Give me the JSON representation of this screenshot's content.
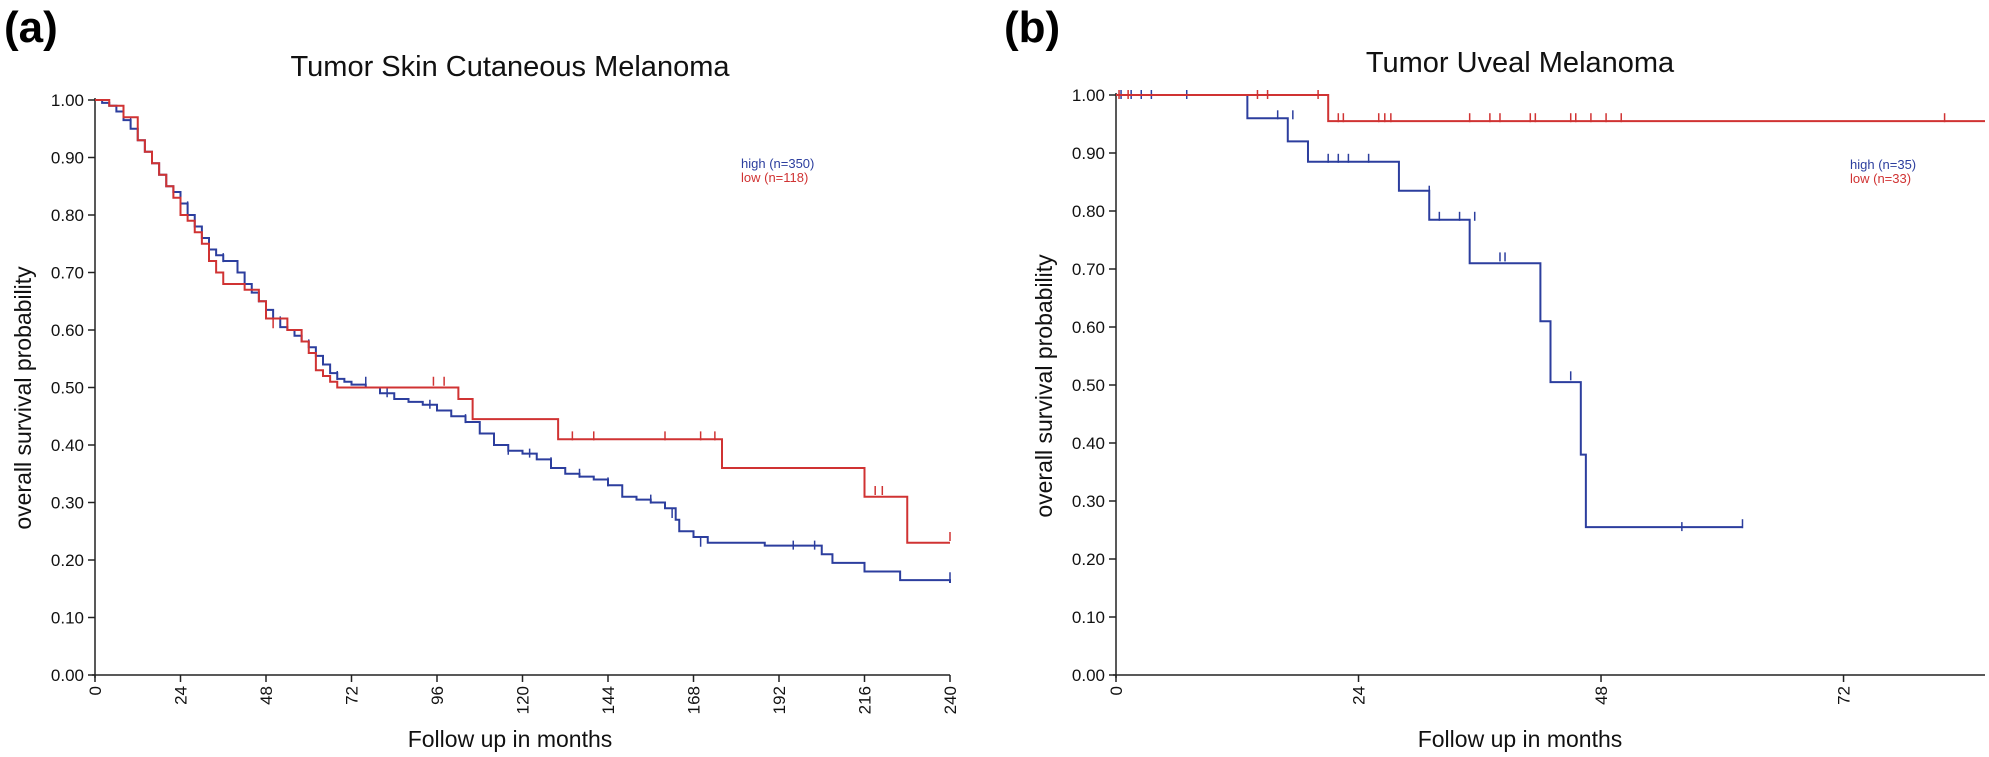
{
  "chart_data": [
    {
      "panel_label": "(a)",
      "type": "line",
      "title": "Tumor Skin Cutaneous Melanoma",
      "xlabel": "Follow up in months",
      "ylabel": "overall survival probability",
      "xlim": [
        0,
        240
      ],
      "ylim": [
        0,
        1.0
      ],
      "x_ticks": [
        0,
        24,
        48,
        72,
        96,
        120,
        144,
        168,
        192,
        216,
        240
      ],
      "y_ticks": [
        "0.00",
        "0.10",
        "0.20",
        "0.30",
        "0.40",
        "0.50",
        "0.60",
        "0.70",
        "0.80",
        "0.90",
        "1.00"
      ],
      "legend": [
        {
          "label": "high (n=350)",
          "color": "#2c3e9e"
        },
        {
          "label": "low (n=118)",
          "color": "#d03333"
        }
      ],
      "series": [
        {
          "name": "high (n=350)",
          "color": "#2c3e9e",
          "steps": [
            [
              0,
              1.0
            ],
            [
              2,
              0.995
            ],
            [
              4,
              0.99
            ],
            [
              6,
              0.98
            ],
            [
              8,
              0.965
            ],
            [
              10,
              0.95
            ],
            [
              12,
              0.93
            ],
            [
              14,
              0.91
            ],
            [
              16,
              0.89
            ],
            [
              18,
              0.87
            ],
            [
              20,
              0.85
            ],
            [
              22,
              0.84
            ],
            [
              24,
              0.82
            ],
            [
              26,
              0.8
            ],
            [
              28,
              0.78
            ],
            [
              30,
              0.76
            ],
            [
              32,
              0.74
            ],
            [
              34,
              0.73
            ],
            [
              36,
              0.72
            ],
            [
              40,
              0.7
            ],
            [
              42,
              0.68
            ],
            [
              44,
              0.665
            ],
            [
              46,
              0.65
            ],
            [
              48,
              0.635
            ],
            [
              50,
              0.62
            ],
            [
              52,
              0.605
            ],
            [
              54,
              0.6
            ],
            [
              56,
              0.59
            ],
            [
              58,
              0.58
            ],
            [
              60,
              0.57
            ],
            [
              62,
              0.555
            ],
            [
              64,
              0.54
            ],
            [
              66,
              0.525
            ],
            [
              68,
              0.515
            ],
            [
              70,
              0.51
            ],
            [
              72,
              0.505
            ],
            [
              76,
              0.5
            ],
            [
              80,
              0.49
            ],
            [
              84,
              0.48
            ],
            [
              88,
              0.475
            ],
            [
              92,
              0.47
            ],
            [
              96,
              0.46
            ],
            [
              100,
              0.45
            ],
            [
              104,
              0.44
            ],
            [
              108,
              0.42
            ],
            [
              112,
              0.4
            ],
            [
              116,
              0.39
            ],
            [
              120,
              0.385
            ],
            [
              124,
              0.375
            ],
            [
              128,
              0.36
            ],
            [
              132,
              0.35
            ],
            [
              136,
              0.345
            ],
            [
              140,
              0.34
            ],
            [
              144,
              0.33
            ],
            [
              148,
              0.31
            ],
            [
              152,
              0.305
            ],
            [
              156,
              0.3
            ],
            [
              160,
              0.29
            ],
            [
              163,
              0.27
            ],
            [
              164,
              0.25
            ],
            [
              168,
              0.24
            ],
            [
              172,
              0.23
            ],
            [
              188,
              0.225
            ],
            [
              204,
              0.21
            ],
            [
              207,
              0.195
            ],
            [
              216,
              0.18
            ],
            [
              226,
              0.165
            ],
            [
              240,
              0.16
            ]
          ],
          "censors": [
            [
              10,
              0.96
            ],
            [
              20,
              0.86
            ],
            [
              26,
              0.815
            ],
            [
              36,
              0.725
            ],
            [
              40,
              0.71
            ],
            [
              46,
              0.655
            ],
            [
              52,
              0.615
            ],
            [
              60,
              0.575
            ],
            [
              68,
              0.52
            ],
            [
              76,
              0.51
            ],
            [
              82,
              0.49
            ],
            [
              94,
              0.47
            ],
            [
              104,
              0.445
            ],
            [
              116,
              0.39
            ],
            [
              122,
              0.385
            ],
            [
              128,
              0.37
            ],
            [
              136,
              0.35
            ],
            [
              144,
              0.335
            ],
            [
              156,
              0.305
            ],
            [
              162,
              0.28
            ],
            [
              170,
              0.23
            ],
            [
              196,
              0.225
            ],
            [
              202,
              0.225
            ],
            [
              240,
              0.17
            ]
          ]
        },
        {
          "name": "low (n=118)",
          "color": "#d03333",
          "steps": [
            [
              0,
              1.0
            ],
            [
              4,
              0.99
            ],
            [
              8,
              0.97
            ],
            [
              12,
              0.93
            ],
            [
              14,
              0.91
            ],
            [
              16,
              0.89
            ],
            [
              18,
              0.87
            ],
            [
              20,
              0.85
            ],
            [
              22,
              0.83
            ],
            [
              24,
              0.8
            ],
            [
              26,
              0.79
            ],
            [
              28,
              0.77
            ],
            [
              30,
              0.75
            ],
            [
              32,
              0.72
            ],
            [
              34,
              0.7
            ],
            [
              36,
              0.68
            ],
            [
              42,
              0.67
            ],
            [
              46,
              0.65
            ],
            [
              48,
              0.62
            ],
            [
              54,
              0.6
            ],
            [
              58,
              0.58
            ],
            [
              60,
              0.56
            ],
            [
              62,
              0.53
            ],
            [
              64,
              0.52
            ],
            [
              66,
              0.51
            ],
            [
              68,
              0.5
            ],
            [
              102,
              0.48
            ],
            [
              106,
              0.445
            ],
            [
              130,
              0.41
            ],
            [
              176,
              0.36
            ],
            [
              216,
              0.31
            ],
            [
              228,
              0.23
            ],
            [
              240,
              0.23
            ]
          ],
          "censors": [
            [
              8,
              0.98
            ],
            [
              22,
              0.84
            ],
            [
              50,
              0.61
            ],
            [
              95,
              0.51
            ],
            [
              98,
              0.51
            ],
            [
              134,
              0.415
            ],
            [
              140,
              0.415
            ],
            [
              160,
              0.415
            ],
            [
              170,
              0.415
            ],
            [
              174,
              0.415
            ],
            [
              219,
              0.32
            ],
            [
              221,
              0.32
            ],
            [
              240,
              0.24
            ]
          ]
        }
      ]
    },
    {
      "panel_label": "(b)",
      "type": "line",
      "title": "Tumor Uveal Melanoma",
      "xlabel": "Follow up in months",
      "ylabel": "overall survival probability",
      "xlim": [
        0,
        86
      ],
      "ylim": [
        0,
        1.0
      ],
      "x_ticks": [
        0,
        24,
        48,
        72
      ],
      "y_ticks": [
        "0.00",
        "0.10",
        "0.20",
        "0.30",
        "0.40",
        "0.50",
        "0.60",
        "0.70",
        "0.80",
        "0.90",
        "1.00"
      ],
      "legend": [
        {
          "label": "high (n=35)",
          "color": "#2c3e9e"
        },
        {
          "label": "low (n=33)",
          "color": "#d03333"
        }
      ],
      "series": [
        {
          "name": "high (n=35)",
          "color": "#2c3e9e",
          "steps": [
            [
              0,
              1.0
            ],
            [
              13,
              0.96
            ],
            [
              17,
              0.92
            ],
            [
              19,
              0.885
            ],
            [
              28,
              0.835
            ],
            [
              31,
              0.785
            ],
            [
              35,
              0.71
            ],
            [
              42,
              0.61
            ],
            [
              43,
              0.505
            ],
            [
              46,
              0.38
            ],
            [
              46.5,
              0.255
            ],
            [
              62,
              0.255
            ]
          ],
          "censors": [
            [
              0.5,
              1.0
            ],
            [
              1.5,
              1.0
            ],
            [
              2.5,
              1.0
            ],
            [
              3.5,
              1.0
            ],
            [
              7,
              1.0
            ],
            [
              16,
              0.965
            ],
            [
              17.5,
              0.965
            ],
            [
              21,
              0.89
            ],
            [
              22,
              0.89
            ],
            [
              23,
              0.89
            ],
            [
              25,
              0.89
            ],
            [
              31,
              0.835
            ],
            [
              32,
              0.79
            ],
            [
              34,
              0.79
            ],
            [
              35.5,
              0.79
            ],
            [
              38,
              0.72
            ],
            [
              38.5,
              0.72
            ],
            [
              45,
              0.515
            ],
            [
              56,
              0.255
            ],
            [
              62,
              0.26
            ]
          ]
        },
        {
          "name": "low (n=33)",
          "color": "#d03333",
          "steps": [
            [
              0,
              1.0
            ],
            [
              21,
              0.955
            ],
            [
              86,
              0.955
            ]
          ],
          "censors": [
            [
              0.3,
              1.0
            ],
            [
              1.2,
              1.0
            ],
            [
              14,
              1.0
            ],
            [
              15,
              1.0
            ],
            [
              20,
              1.0
            ],
            [
              22,
              0.96
            ],
            [
              22.5,
              0.96
            ],
            [
              26,
              0.96
            ],
            [
              26.6,
              0.96
            ],
            [
              27.2,
              0.96
            ],
            [
              35,
              0.96
            ],
            [
              37,
              0.96
            ],
            [
              38,
              0.96
            ],
            [
              41,
              0.96
            ],
            [
              41.5,
              0.96
            ],
            [
              45,
              0.96
            ],
            [
              45.5,
              0.96
            ],
            [
              47,
              0.96
            ],
            [
              48.5,
              0.96
            ],
            [
              50,
              0.96
            ],
            [
              82,
              0.96
            ]
          ]
        }
      ]
    }
  ]
}
